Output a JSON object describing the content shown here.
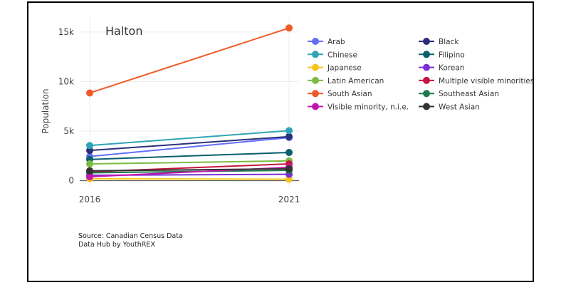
{
  "chart_data": {
    "type": "line",
    "title": "Halton",
    "ylabel": "Population",
    "xlabel": "",
    "x": [
      "2016",
      "2021"
    ],
    "ylim": [
      -600,
      16500
    ],
    "y_ticks": [
      0,
      5000,
      10000,
      15000
    ],
    "y_tick_labels": [
      "0",
      "5k",
      "10k",
      "15k"
    ],
    "grid": true,
    "legend_position": "right",
    "series": [
      {
        "name": "Arab",
        "color": "#636efa",
        "values": [
          2450,
          4350
        ]
      },
      {
        "name": "Black",
        "color": "#2b2f7a",
        "values": [
          3050,
          4450
        ]
      },
      {
        "name": "Chinese",
        "color": "#2fa4b5",
        "values": [
          3550,
          5050
        ]
      },
      {
        "name": "Filipino",
        "color": "#0a5f6e",
        "values": [
          2150,
          2850
        ]
      },
      {
        "name": "Japanese",
        "color": "#f5c518",
        "values": [
          200,
          150
        ]
      },
      {
        "name": "Korean",
        "color": "#7b2fd6",
        "values": [
          550,
          650
        ]
      },
      {
        "name": "Latin American",
        "color": "#7cbb43",
        "values": [
          1700,
          2000
        ]
      },
      {
        "name": "Multiple visible minorities",
        "color": "#c4173f",
        "values": [
          900,
          1700
        ]
      },
      {
        "name": "South Asian",
        "color": "#f05a28",
        "values": [
          8850,
          15400
        ]
      },
      {
        "name": "Southeast Asian",
        "color": "#1e7a4f",
        "values": [
          800,
          1050
        ]
      },
      {
        "name": "Visible minority, n.i.e.",
        "color": "#c216b0",
        "values": [
          400,
          1350
        ]
      },
      {
        "name": "West Asian",
        "color": "#333333",
        "values": [
          1000,
          1200
        ]
      }
    ]
  },
  "source_lines": [
    "Source: Canadian Census Data",
    "Data Hub by YouthREX"
  ]
}
